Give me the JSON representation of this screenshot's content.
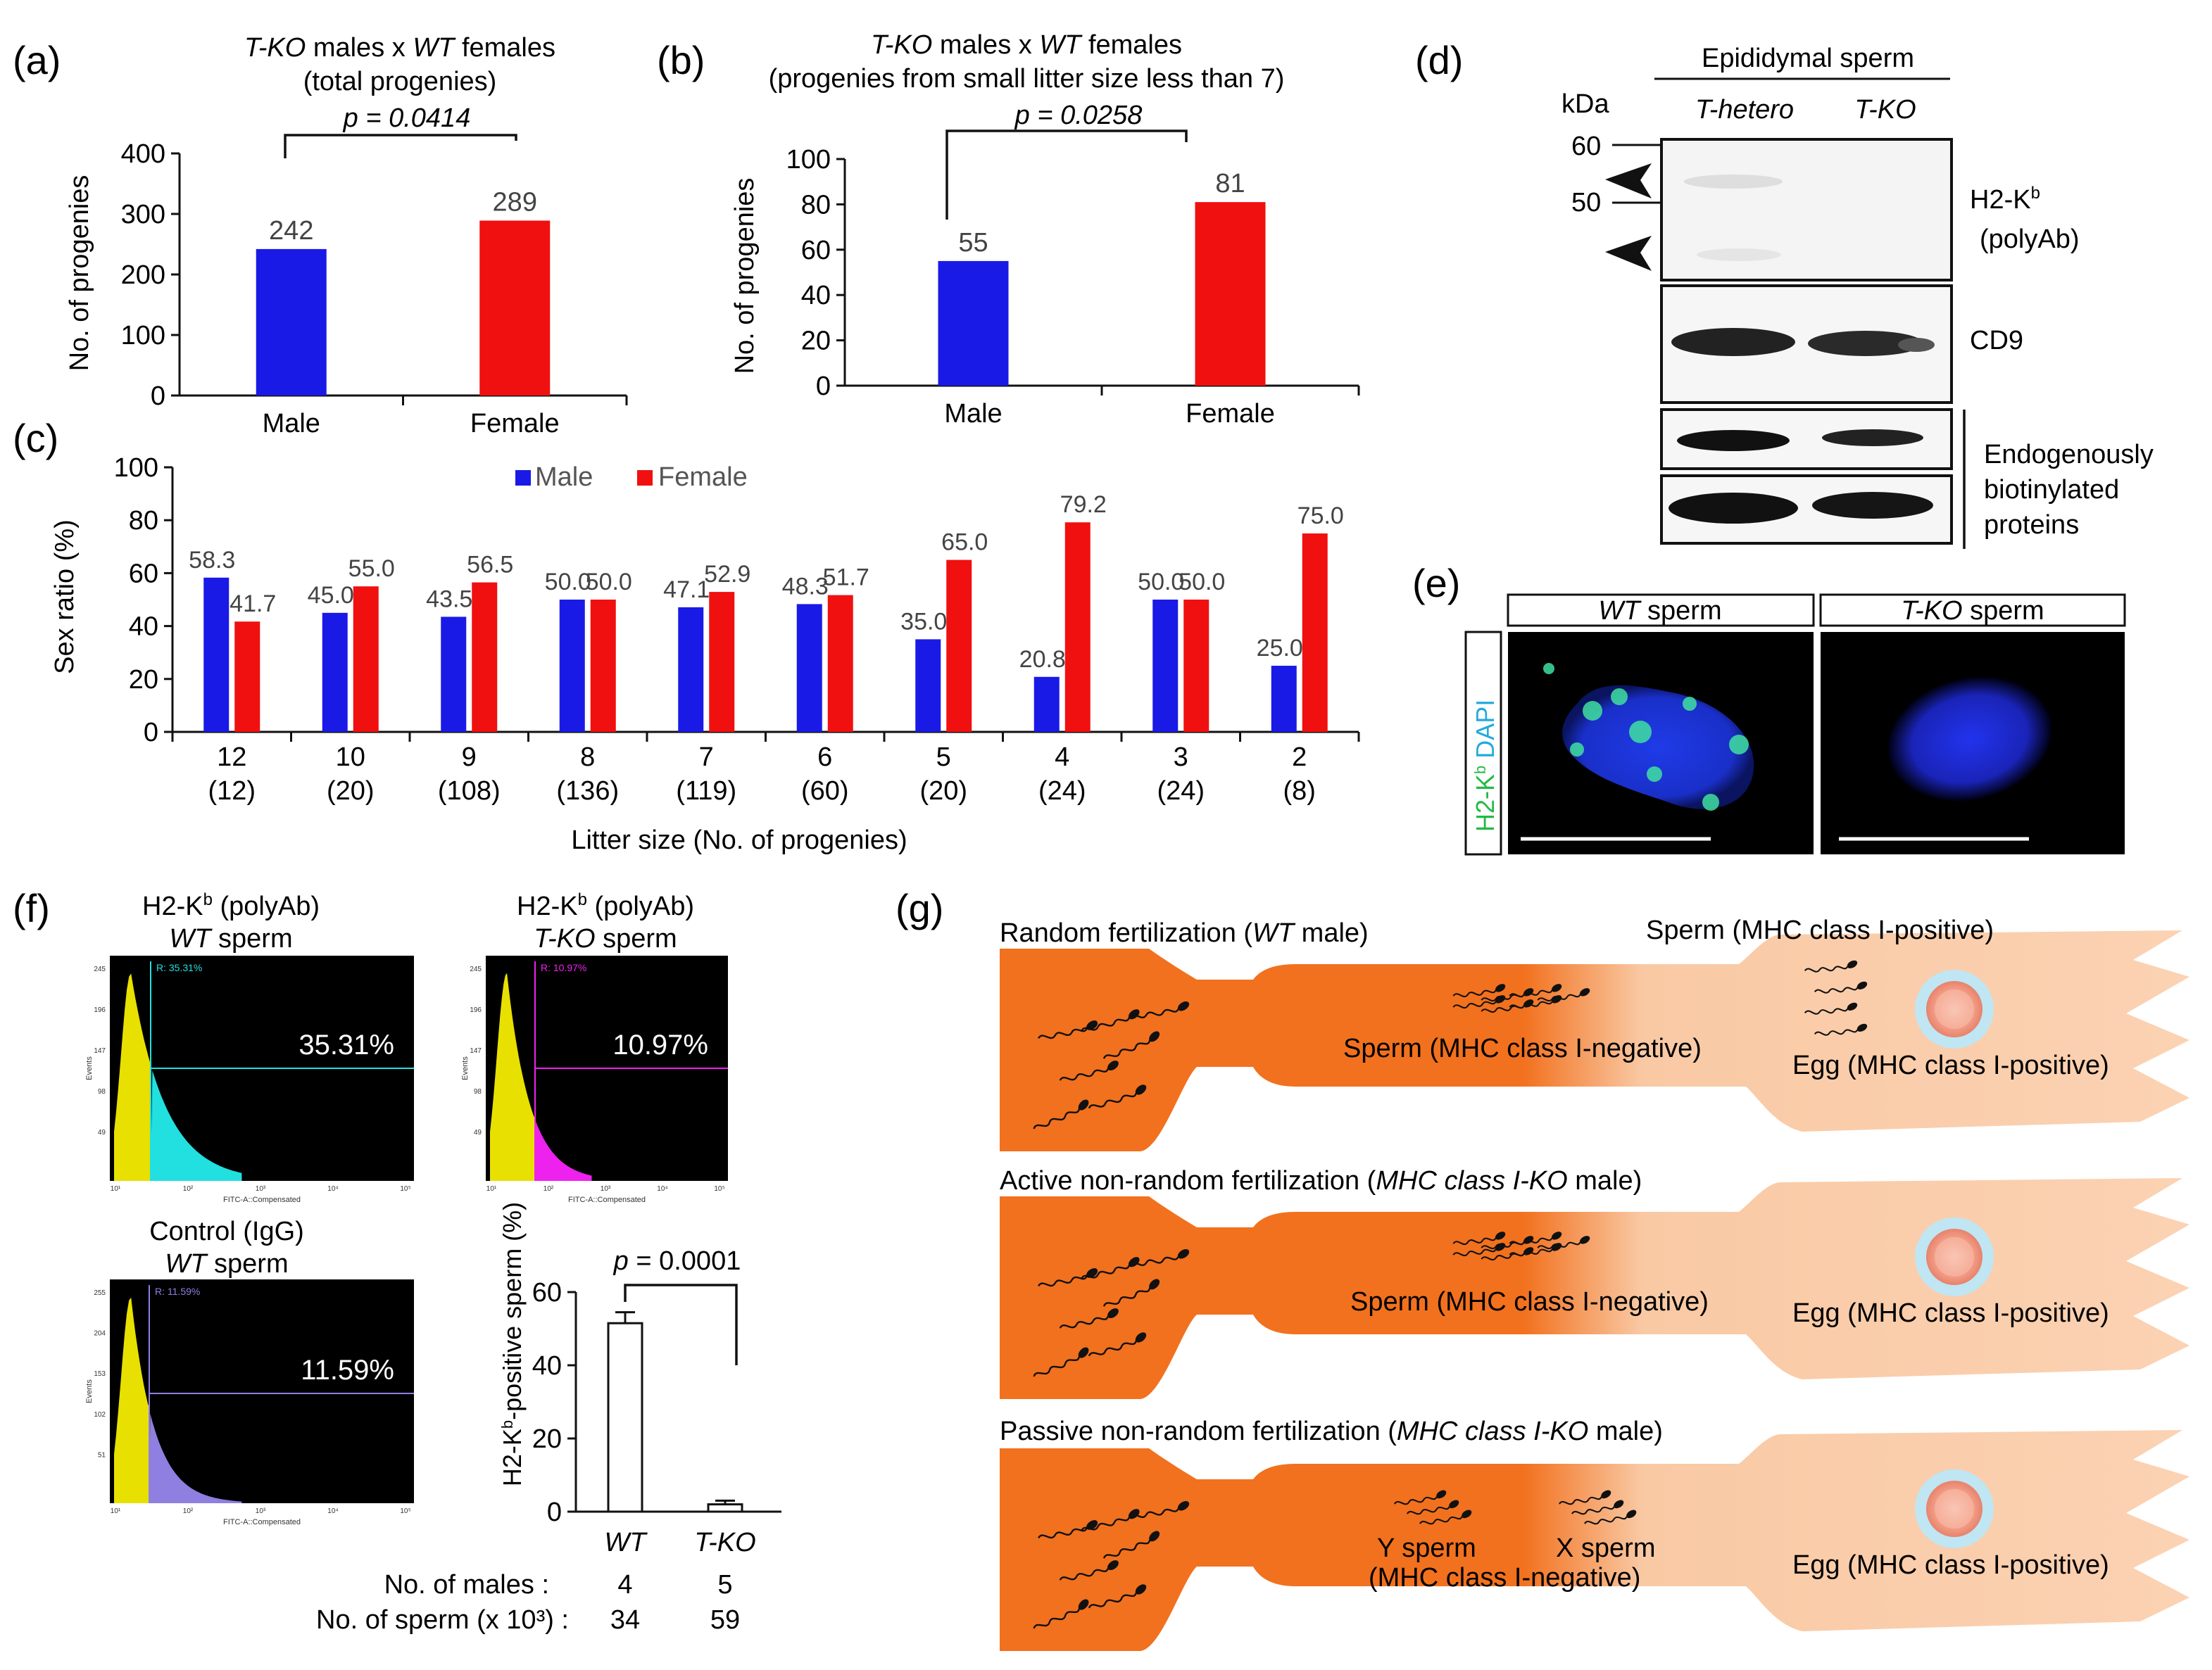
{
  "panels": {
    "a": {
      "letter": "(a)",
      "title1_italic_a": "T-KO",
      "title1_mid": " males x ",
      "title1_italic_b": "WT",
      "title1_end": " females",
      "title2": "(total progenies)",
      "pvalue": "p = 0.0414",
      "ylabel": "No. of progenies",
      "ticks": [
        "0",
        "100",
        "200",
        "300",
        "400"
      ]
    },
    "b": {
      "letter": "(b)",
      "title1_italic_a": "T-KO",
      "title1_mid": " males x ",
      "title1_italic_b": "WT",
      "title1_end": " females",
      "title2": "(progenies from small litter size less than 7)",
      "pvalue": "p = 0.0258",
      "ylabel": "No. of progenies",
      "ticks": [
        "0",
        "20",
        "40",
        "60",
        "80",
        "100"
      ]
    },
    "c": {
      "letter": "(c)",
      "ylabel": "Sex ratio (%)",
      "xlabel": "Litter size (No. of progenies)",
      "ticks": [
        "0",
        "20",
        "40",
        "60",
        "80",
        "100"
      ],
      "legend_male": "Male",
      "legend_female": "Female"
    },
    "d": {
      "letter": "(d)",
      "header": "Epididymal sperm",
      "kda": "kDa",
      "col1": "T-hetero",
      "col2": "T-KO",
      "marker60": "60",
      "marker50": "50",
      "label_h2kb": "H2-K",
      "label_h2kb_sup": "b",
      "label_polyab": "(polyAb)",
      "label_cd9": "CD9",
      "label_endo1": "Endogenously",
      "label_endo2": "biotinylated",
      "label_endo3": "proteins"
    },
    "e": {
      "letter": "(e)",
      "wt_italic": "WT",
      "wt_rest": " sperm",
      "ko_italic": "T-KO",
      "ko_rest": " sperm",
      "side_green": "H2-K",
      "side_green_sup": "b",
      "side_blue": "DAPI"
    },
    "f": {
      "letter": "(f)",
      "h1_line1": "H2-K",
      "h1_sup": "b",
      "h1_line1_rest": " (polyAb)",
      "h1_line2_italic": "WT",
      "h1_line2_rest": " sperm",
      "h1_pct": "35.31%",
      "h1_gate": "35.31%",
      "h2_line1": "H2-K",
      "h2_sup": "b",
      "h2_line1_rest": " (polyAb)",
      "h2_line2_italic": "T-KO",
      "h2_line2_rest": " sperm",
      "h2_pct": "10.97%",
      "h2_gate": "10.97%",
      "h3_line1": "Control (IgG)",
      "h3_line2_italic": "WT",
      "h3_line2_rest": " sperm",
      "h3_pct": "11.59%",
      "h3_gate": "11.59%",
      "hist_xaxis": "FITC-A::Compensated",
      "hist_yaxis": "Events",
      "h1_yticks": [
        "245",
        "196",
        "147",
        "98",
        "49"
      ],
      "h2_yticks": [
        "245",
        "196",
        "147",
        "98",
        "49"
      ],
      "h3_yticks": [
        "255",
        "204",
        "153",
        "102",
        "51"
      ],
      "hist_xticks": [
        "10¹",
        "10²",
        "10³",
        "10⁴",
        "10⁵"
      ],
      "bar_ylabel_a": "H2-K",
      "bar_ylabel_sup": "b",
      "bar_ylabel_b": "-positive sperm (%)",
      "bar_pvalue": "p = 0.0001",
      "bar_ticks": [
        "0",
        "20",
        "40",
        "60"
      ],
      "bar_cat1": "WT",
      "bar_cat2": "T-KO",
      "row1_label": "No. of males :",
      "row1_v1": "4",
      "row1_v2": "5",
      "row2_label": "No. of sperm (x 10³) :",
      "row2_v1": "34",
      "row2_v2": "59"
    },
    "g": {
      "letter": "(g)",
      "s1_title_a": "Random fertilization (",
      "s1_title_italic": "WT",
      "s1_title_b": " male)",
      "s1_pos_sperm": "Sperm (MHC class I-positive)",
      "s1_neg_sperm": "Sperm (MHC class I-negative)",
      "s1_egg": "Egg (MHC class I-positive)",
      "s2_title_a": "Active non-random fertilization (",
      "s2_title_italic": "MHC class I-KO",
      "s2_title_b": " male)",
      "s2_neg_sperm": "Sperm (MHC class I-negative)",
      "s2_egg": "Egg (MHC class I-positive)",
      "s3_title_a": "Passive non-random fertilization (",
      "s3_title_italic": "MHC class I-KO",
      "s3_title_b": " male)",
      "s3_y": "Y sperm",
      "s3_x": "X sperm",
      "s3_neg": "(MHC class I-negative)",
      "s3_egg": "Egg (MHC class I-positive)"
    }
  },
  "chart_data": [
    {
      "type": "bar",
      "categories": [
        "Male",
        "Female"
      ],
      "values": [
        242,
        289
      ],
      "ylabel": "No. of progenies",
      "ylim": [
        0,
        400
      ],
      "colors": [
        "#1a1ae6",
        "#f01010"
      ]
    },
    {
      "type": "bar",
      "categories": [
        "Male",
        "Female"
      ],
      "values": [
        55,
        81
      ],
      "ylabel": "No. of progenies",
      "ylim": [
        0,
        100
      ],
      "colors": [
        "#1a1ae6",
        "#f01010"
      ]
    },
    {
      "type": "bar",
      "categories": [
        "12",
        "10",
        "9",
        "8",
        "7",
        "6",
        "5",
        "4",
        "3",
        "2"
      ],
      "subcategories": [
        "(12)",
        "(20)",
        "(108)",
        "(136)",
        "(119)",
        "(60)",
        "(20)",
        "(24)",
        "(24)",
        "(8)"
      ],
      "series": [
        {
          "name": "Male",
          "values": [
            58.3,
            45.0,
            43.5,
            50.0,
            47.1,
            48.3,
            35.0,
            20.8,
            50.0,
            25.0
          ],
          "labels": [
            "58.3",
            "45.0",
            "43.5",
            "50.0",
            "47.1",
            "48.3",
            "35.0",
            "20.8",
            "50.0",
            "25.0"
          ],
          "color": "#1a1ae6"
        },
        {
          "name": "Female",
          "values": [
            41.7,
            55.0,
            56.5,
            50.0,
            52.9,
            51.7,
            65.0,
            79.2,
            50.0,
            75.0
          ],
          "labels": [
            "41.7",
            "55.0",
            "56.5",
            "50.0",
            "52.9",
            "51.7",
            "65.0",
            "79.2",
            "50.0",
            "75.0"
          ],
          "color": "#f01010"
        }
      ],
      "xlabel": "Litter size (No. of progenies)",
      "ylabel": "Sex ratio (%)",
      "ylim": [
        0,
        100
      ],
      "legend": "top"
    },
    {
      "type": "bar",
      "categories": [
        "WT",
        "T-KO"
      ],
      "values": [
        51.5,
        2.0
      ],
      "errors": [
        3.0,
        1.0
      ],
      "ylabel": "H2-Kb-positive sperm (%)",
      "ylim": [
        0,
        60
      ]
    }
  ]
}
